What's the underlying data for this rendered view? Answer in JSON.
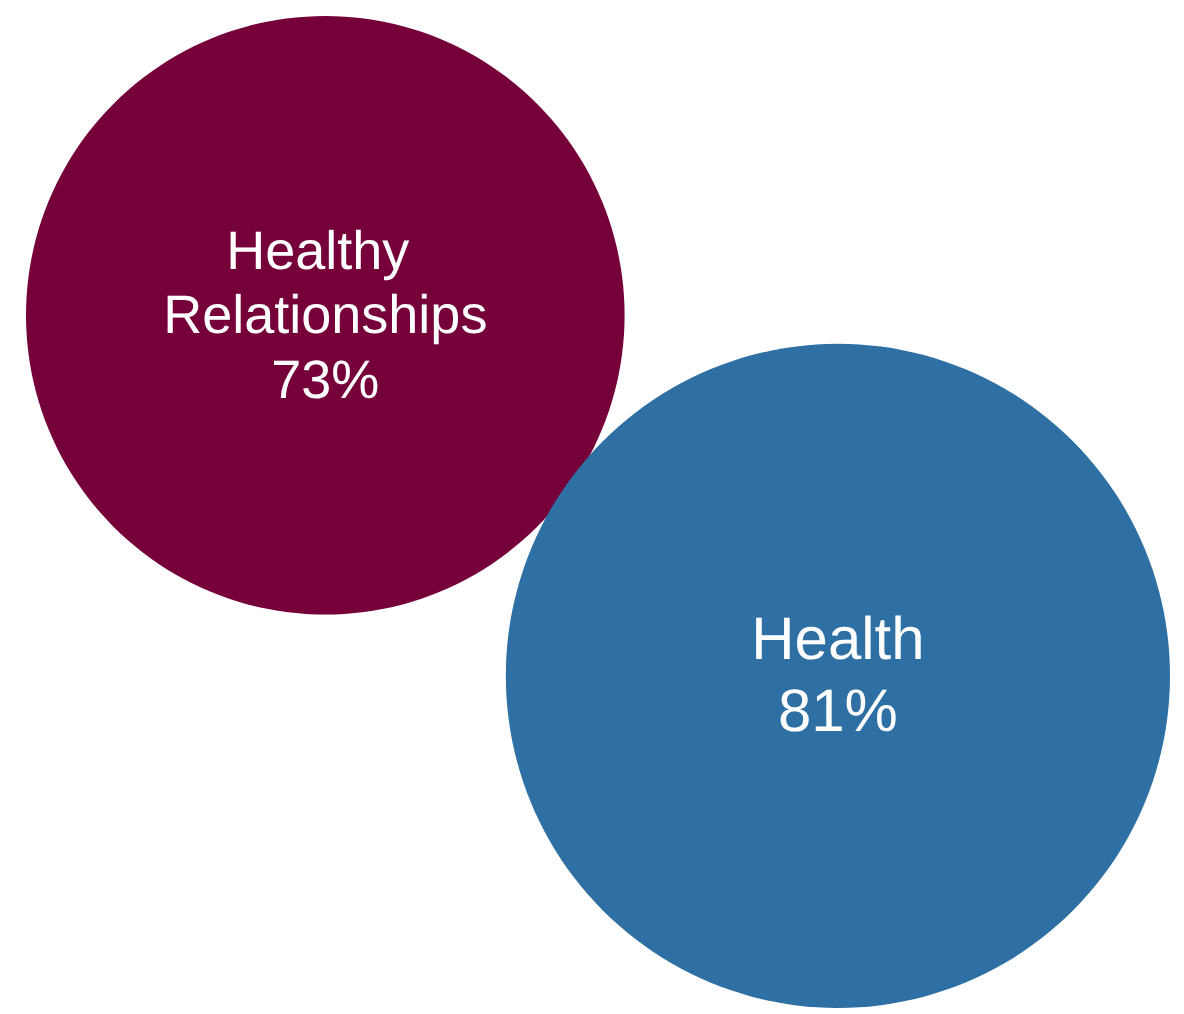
{
  "chart_data": {
    "type": "other",
    "categories": [
      "Healthy Relationships",
      "Health"
    ],
    "values": [
      73,
      81
    ],
    "value_labels": [
      "73%",
      "81%"
    ],
    "colors": [
      "#75003a",
      "#2e6fa4"
    ]
  }
}
